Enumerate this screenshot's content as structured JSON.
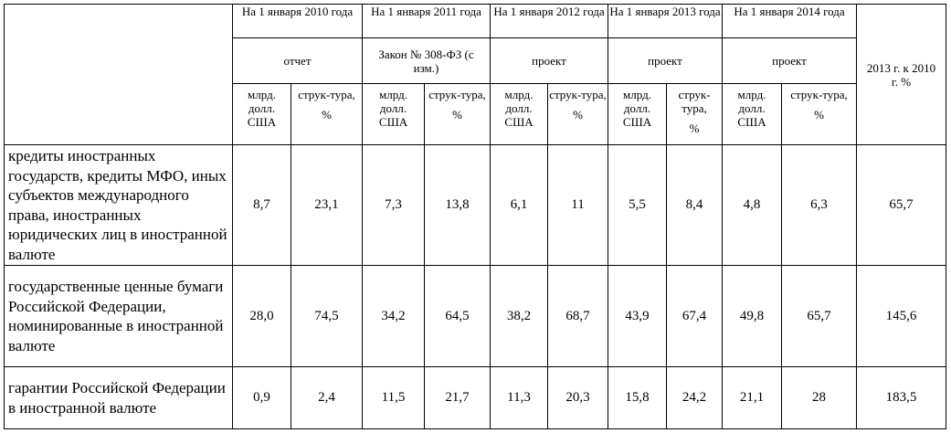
{
  "header": {
    "periods": [
      {
        "date": "На  1 января 2010 года",
        "kind": "отчет"
      },
      {
        "date": "На  1 января 2011 года",
        "kind": "Закон № 308-ФЗ (с изм.)"
      },
      {
        "date": "На  1 января 2012 года",
        "kind": "проект"
      },
      {
        "date": "На 1 января 2013 года",
        "kind": "проект"
      },
      {
        "date": "На  1 января 2014 года",
        "kind": "проект"
      }
    ],
    "unit_value": "млрд. долл. США",
    "unit_share_1": "струк-тура,",
    "unit_share_2": "%",
    "ratio": "2013 г. к 2010 г. %"
  },
  "rows": [
    {
      "label": "кредиты иностранных государств, кредиты МФО, иных субъектов международного права, иностранных юридических лиц в иностранной валюте",
      "values": [
        "8,7",
        "23,1",
        "7,3",
        "13,8",
        "6,1",
        "11",
        "5,5",
        "8,4",
        "4,8",
        "6,3",
        "65,7"
      ]
    },
    {
      "label": "государственные ценные бумаги Российской Федерации, номинированные в иностранной валюте",
      "values": [
        "28,0",
        "74,5",
        "34,2",
        "64,5",
        "38,2",
        "68,7",
        "43,9",
        "67,4",
        "49,8",
        "65,7",
        "145,6"
      ]
    },
    {
      "label": "гарантии Российской Федерации в иностранной валюте",
      "values": [
        "0,9",
        "2,4",
        "11,5",
        "21,7",
        "11,3",
        "20,3",
        "15,8",
        "24,2",
        "21,1",
        "28",
        "183,5"
      ]
    }
  ]
}
